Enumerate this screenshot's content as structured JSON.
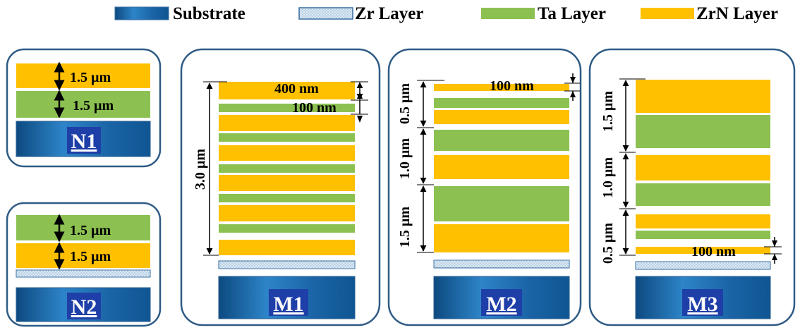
{
  "colors": {
    "zrn": "#FFC000",
    "ta": "#8CC152",
    "substrate_dark": "#0f4f86",
    "substrate_light": "#2f86c9",
    "zr_fill": "#d8e9f7",
    "frame": "#2e5b85",
    "label_bg": "#1f3fa8"
  },
  "legend": [
    {
      "swatch": "substrate",
      "label": "Substrate"
    },
    {
      "swatch": "zr",
      "label": "Zr Layer"
    },
    {
      "swatch": "ta",
      "label": "Ta Layer"
    },
    {
      "swatch": "zrn",
      "label": "ZrN Layer"
    }
  ],
  "samples": {
    "N1": {
      "name": "N1",
      "dims": [
        "1.5 µm",
        "1.5 µm"
      ]
    },
    "N2": {
      "name": "N2",
      "dims": [
        "1.5 µm",
        "1.5 µm"
      ]
    },
    "M1": {
      "name": "M1",
      "dims": [
        "3.0 µm",
        "400 nm",
        "100 nm"
      ]
    },
    "M2": {
      "name": "M2",
      "dims": [
        "0.5 µm",
        "1.0 µm",
        "1.5 µm",
        "100 nm"
      ]
    },
    "M3": {
      "name": "M3",
      "dims": [
        "1.5 µm",
        "1.0 µm",
        "0.5 µm",
        "100 nm"
      ]
    }
  }
}
